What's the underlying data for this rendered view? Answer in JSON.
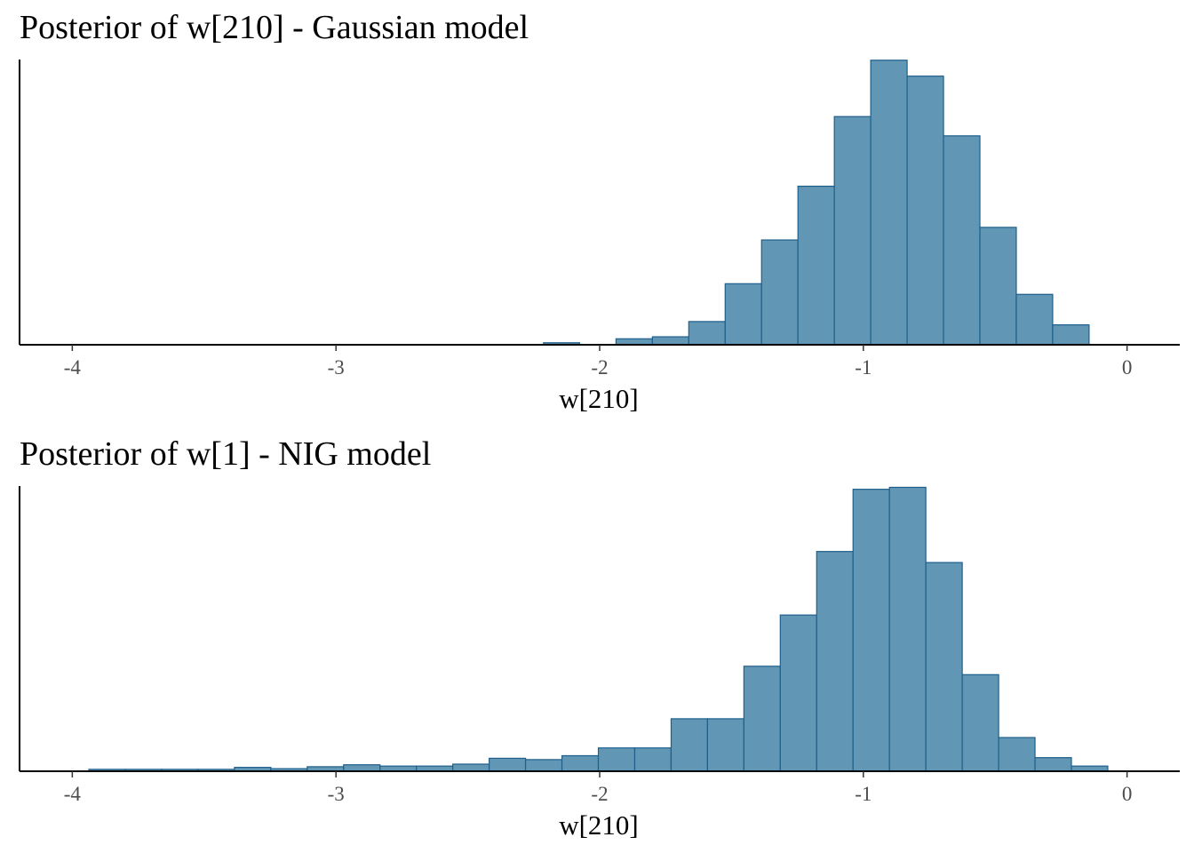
{
  "chart_data": [
    {
      "type": "bar",
      "title": "Posterior of w[210] - Gaussian model",
      "xlabel": "w[210]",
      "ylabel": "",
      "xlim": [
        -4.2,
        0.2
      ],
      "xticks": [
        -4,
        -3,
        -2,
        -1,
        0
      ],
      "xtick_labels": [
        "-4",
        "-3",
        "-2",
        "-1",
        "0"
      ],
      "bin_edges": [
        -2.213,
        -2.076,
        -1.938,
        -1.8,
        -1.662,
        -1.524,
        -1.386,
        -1.248,
        -1.11,
        -0.972,
        -0.834,
        -0.696,
        -0.558,
        -0.42,
        -0.282,
        -0.144,
        -0.006
      ],
      "values": [
        0.3,
        0,
        0.9,
        1.2,
        3.5,
        9.2,
        15.8,
        23.9,
        34.4,
        42.9,
        40.5,
        31.5,
        17.7,
        7.6,
        3.0,
        0
      ],
      "ylim": [
        0,
        43
      ],
      "grid": false,
      "colors": {
        "bar_fill": "#6196b4",
        "bar_edge": "#1f5f8c"
      }
    },
    {
      "type": "bar",
      "title": "Posterior of w[1] - NIG model",
      "xlabel": "w[210]",
      "ylabel": "",
      "xlim": [
        -4.2,
        0.2
      ],
      "xticks": [
        -4,
        -3,
        -2,
        -1,
        0
      ],
      "xtick_labels": [
        "-4",
        "-3",
        "-2",
        "-1",
        "0"
      ],
      "bin_edges": [
        -3.937,
        -3.799,
        -3.661,
        -3.523,
        -3.385,
        -3.247,
        -3.109,
        -2.971,
        -2.833,
        -2.695,
        -2.557,
        -2.419,
        -2.281,
        -2.143,
        -2.005,
        -1.867,
        -1.729,
        -1.591,
        -1.453,
        -1.315,
        -1.177,
        -1.039,
        -0.901,
        -0.763,
        -0.625,
        -0.487,
        -0.349,
        -0.211,
        -0.073
      ],
      "values": [
        0.3,
        0.3,
        0.3,
        0.3,
        0.6,
        0.4,
        0.7,
        1.0,
        0.8,
        0.8,
        1.1,
        2.0,
        1.8,
        2.4,
        3.6,
        3.6,
        8.1,
        8.1,
        16.2,
        24.1,
        33.9,
        43.5,
        43.8,
        32.2,
        14.9,
        5.2,
        2.1,
        0.8
      ],
      "ylim": [
        0,
        44
      ],
      "grid": false,
      "colors": {
        "bar_fill": "#6196b4",
        "bar_edge": "#1f5f8c"
      }
    }
  ]
}
